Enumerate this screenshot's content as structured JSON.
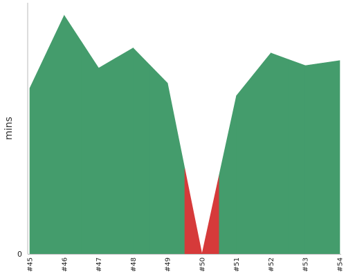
{
  "chart_data": {
    "type": "area",
    "ylabel": "mins",
    "ytick_labels": [
      "0"
    ],
    "categories": [
      "#45",
      "#46",
      "#47",
      "#48",
      "#49",
      "#50",
      "#51",
      "#52",
      "#53",
      "#54"
    ],
    "values": [
      6.6,
      9.5,
      7.4,
      8.2,
      6.8,
      0,
      6.3,
      8.0,
      7.5,
      7.7
    ],
    "status": [
      "success",
      "success",
      "success",
      "success",
      "success",
      "failed",
      "success",
      "success",
      "success",
      "success"
    ],
    "ylim": [
      0,
      10
    ],
    "colors": {
      "success": "#449c6c",
      "failed": "#d63a3a",
      "axis": "#b9b9b9"
    }
  }
}
